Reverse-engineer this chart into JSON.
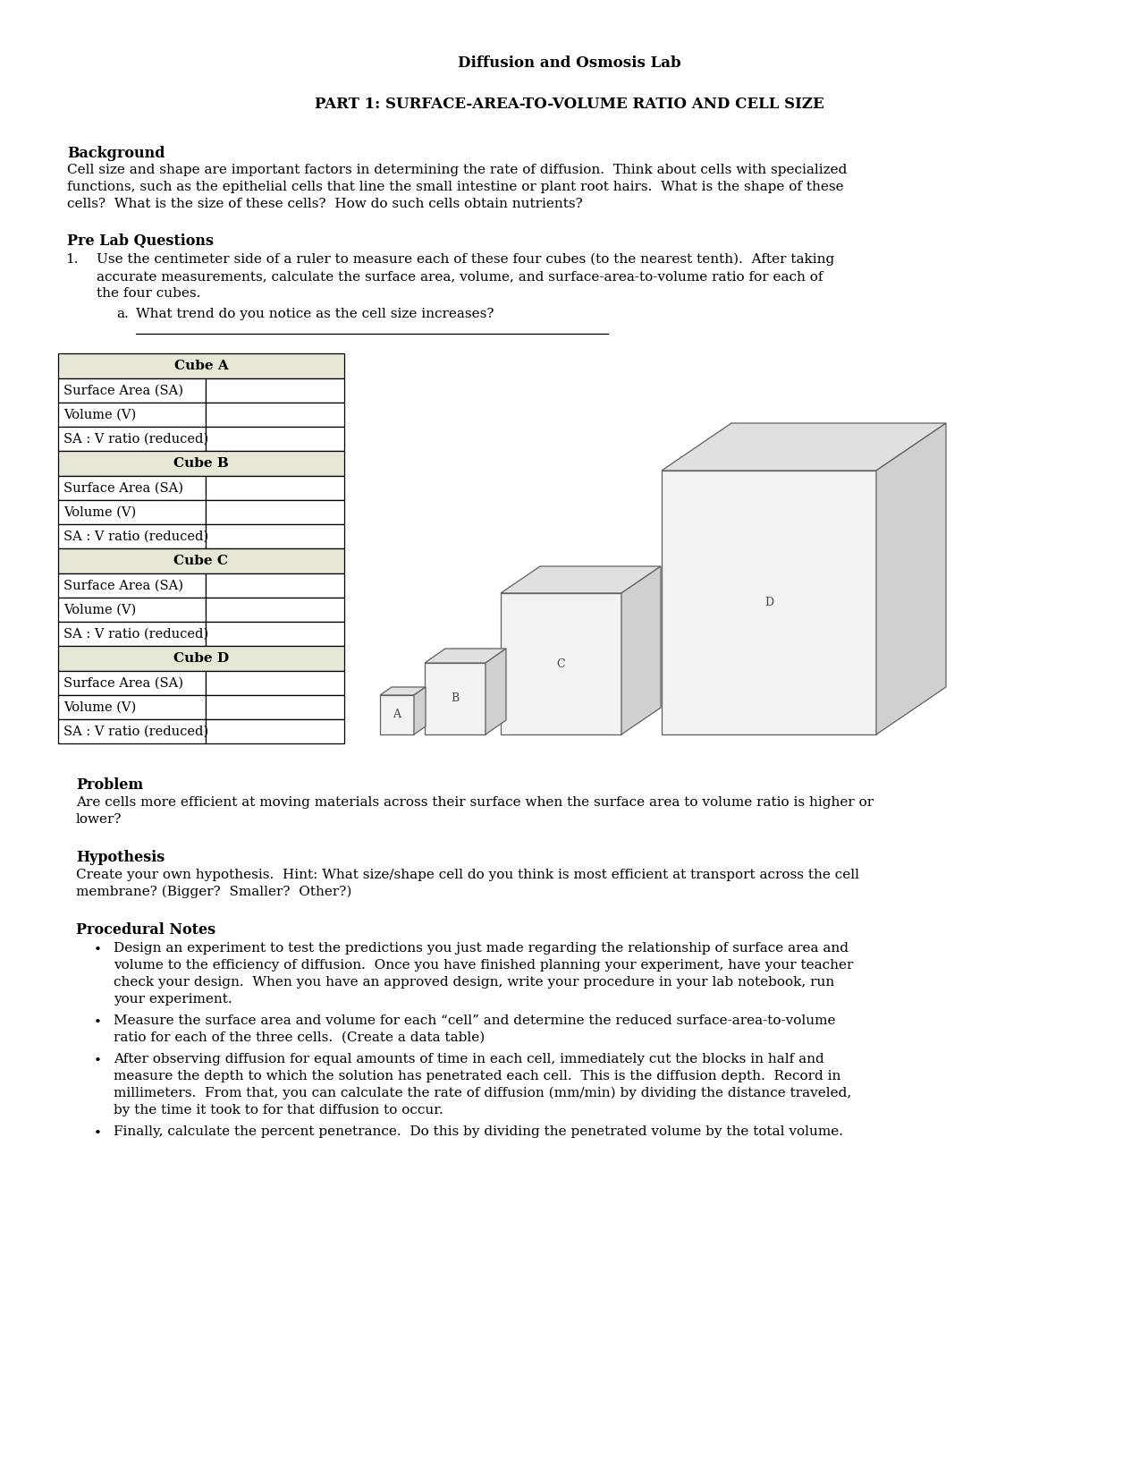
{
  "title": "Diffusion and Osmosis Lab",
  "part1_title": "PART 1: SURFACE-AREA-TO-VOLUME RATIO AND CELL SIZE",
  "background_heading": "Background",
  "background_text": "Cell size and shape are important factors in determining the rate of diffusion.  Think about cells with specialized\nfunctions, such as the epithelial cells that line the small intestine or plant root hairs.  What is the shape of these\ncells?  What is the size of these cells?  How do such cells obtain nutrients?",
  "prelab_heading": "Pre Lab Questions",
  "prelab_item1_line1": "Use the centimeter side of a ruler to measure each of these four cubes (to the nearest tenth).  After taking",
  "prelab_item1_line2": "accurate measurements, calculate the surface area, volume, and surface-area-to-volume ratio for each of",
  "prelab_item1_line3": "the four cubes.",
  "prelab_item1a": "What trend do you notice as the cell size increases?",
  "table_headers": [
    "Cube A",
    "Cube B",
    "Cube C",
    "Cube D"
  ],
  "table_rows": [
    "Surface Area (SA)",
    "Volume (V)",
    "SA : V ratio (reduced)"
  ],
  "problem_heading": "Problem",
  "problem_text_line1": "Are cells more efficient at moving materials across their surface when the surface area to volume ratio is higher or",
  "problem_text_line2": "lower?",
  "hypothesis_heading": "Hypothesis",
  "hypothesis_text_line1": "Create your own hypothesis.  Hint: What size/shape cell do you think is most efficient at transport across the cell",
  "hypothesis_text_line2": "membrane? (Bigger?  Smaller?  Other?)",
  "procedural_heading": "Procedural Notes",
  "procedural_items": [
    "Design an experiment to test the predictions you just made regarding the relationship of surface area and\nvolume to the efficiency of diffusion.  Once you have finished planning your experiment, have your teacher\ncheck your design.  When you have an approved design, write your procedure in your lab notebook, run\nyour experiment.",
    "Measure the surface area and volume for each “cell” and determine the reduced surface-area-to-volume\nratio for each of the three cells.  (Create a data table)",
    "After observing diffusion for equal amounts of time in each cell, immediately cut the blocks in half and\nmeasure the depth to which the solution has penetrated each cell.  This is the diffusion depth.  Record in\nmillimeters.  From that, you can calculate the rate of diffusion (mm/min) by dividing the distance traveled,\nby the time it took to for that diffusion to occur.",
    "Finally, calculate the percent penetrance.  Do this by dividing the penetrated volume by the total volume."
  ],
  "bg_color": "#ffffff",
  "table_header_bg": "#e8e6d5",
  "table_border_color": "#000000",
  "text_color": "#000000"
}
